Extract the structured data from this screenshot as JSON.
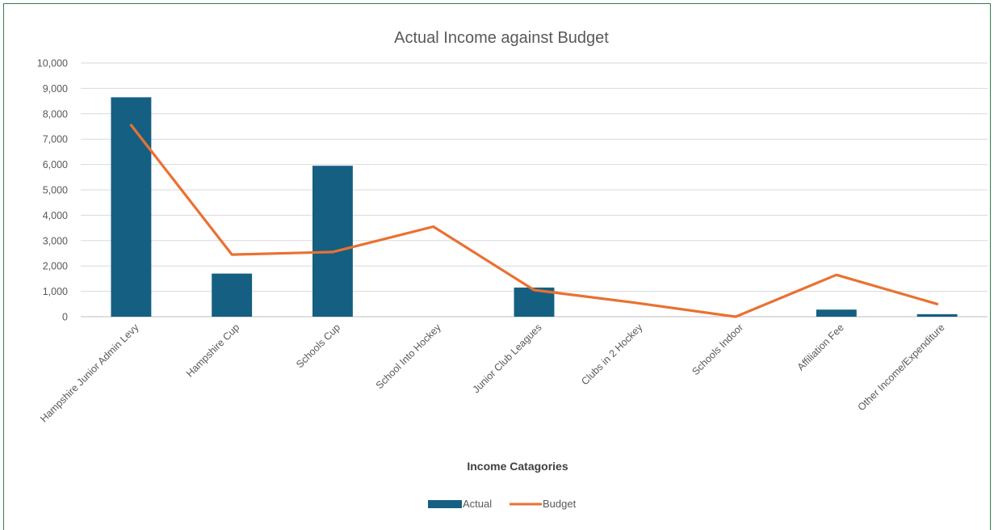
{
  "chart_data": {
    "type": "bar",
    "title": "Actual Income against Budget",
    "xlabel": "Income Catagories",
    "ylabel": "",
    "ylim": [
      0,
      10000
    ],
    "yticks": [
      "0",
      "1,000",
      "2,000",
      "3,000",
      "4,000",
      "5,000",
      "6,000",
      "7,000",
      "8,000",
      "9,000",
      "10,000"
    ],
    "categories": [
      "Hampshire Junior Admin Levy",
      "Hampshire Cup",
      "Schools Cup",
      "School Into Hockey",
      "Junior Club Leagues",
      "Clubs in 2 Hockey",
      "Schools Indoor",
      "Affiliation Fee",
      "Other Income/Expenditure"
    ],
    "series": [
      {
        "name": "Actual",
        "type": "bar",
        "color": "#156082",
        "values": [
          8650,
          1700,
          5950,
          0,
          1150,
          0,
          0,
          280,
          100
        ]
      },
      {
        "name": "Budget",
        "type": "line",
        "color": "#e97132",
        "values": [
          7550,
          2450,
          2550,
          3550,
          1050,
          550,
          0,
          1650,
          500
        ]
      }
    ],
    "grid": true,
    "legend_position": "bottom"
  }
}
